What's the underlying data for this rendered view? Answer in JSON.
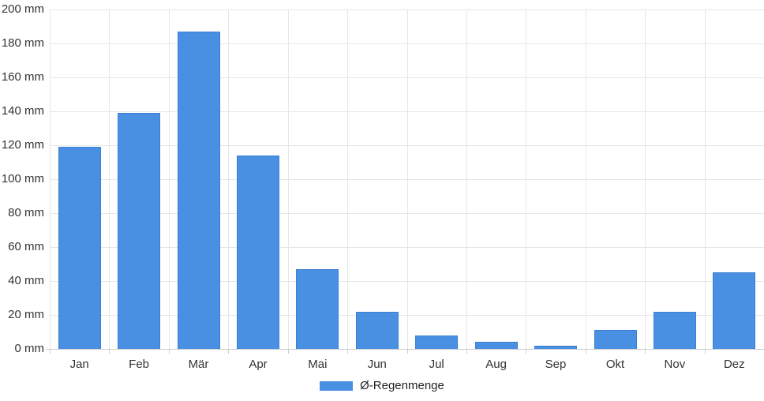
{
  "chart_data": {
    "type": "bar",
    "title": "",
    "categories": [
      "Jan",
      "Feb",
      "Mär",
      "Apr",
      "Mai",
      "Jun",
      "Jul",
      "Aug",
      "Sep",
      "Okt",
      "Nov",
      "Dez"
    ],
    "values": [
      119,
      139,
      187,
      114,
      47,
      22,
      8,
      4,
      2,
      11,
      22,
      45
    ],
    "series_name": "Ø-Regenmenge",
    "unit": "mm",
    "ylabel": "",
    "xlabel": "",
    "ylim": [
      0,
      200
    ],
    "ytick_step": 20,
    "ytick_suffix": " mm",
    "grid": true,
    "legend_position": "bottom",
    "colors": {
      "bar_fill": "#4a90e2",
      "bar_border": "#3b7fd4",
      "gridline": "#e6e6e6",
      "axis_line": "#cccccc",
      "label_text": "#333333"
    }
  }
}
